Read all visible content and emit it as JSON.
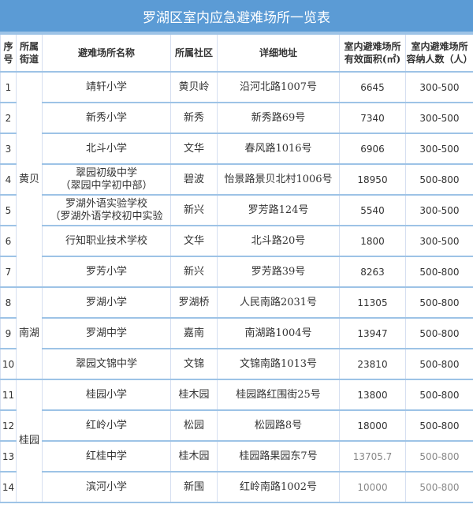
{
  "title": "罗湖区室内应急避难场所一览表",
  "headers": {
    "index": "序号",
    "street": "所属街道",
    "name": "避难场所名称",
    "community": "所属社区",
    "address": "详细地址",
    "area_l1": "室内避难场所",
    "area_l2": "有效面积(㎡)",
    "cap_l1": "室内避难场所",
    "cap_l2": "容纳人数（人）"
  },
  "streets": [
    "黄贝",
    "南湖",
    "桂园"
  ],
  "rows": [
    {
      "no": "1",
      "name": "靖轩小学",
      "name2": "",
      "community": "黄贝岭",
      "address": "沿河北路1007号",
      "area": "6645",
      "capacity": "300-500"
    },
    {
      "no": "2",
      "name": "新秀小学",
      "name2": "",
      "community": "新秀",
      "address": "新秀路69号",
      "area": "7340",
      "capacity": "300-500"
    },
    {
      "no": "3",
      "name": "北斗小学",
      "name2": "",
      "community": "文华",
      "address": "春风路1016号",
      "area": "6906",
      "capacity": "300-500"
    },
    {
      "no": "4",
      "name": "翠园初级中学",
      "name2": "（翠园中学初中部）",
      "community": "碧波",
      "address": "怡景路景贝北村1006号",
      "area": "18950",
      "capacity": "500-800"
    },
    {
      "no": "5",
      "name": "罗湖外语实验学校",
      "name2": "（罗湖外语学校初中实验",
      "community": "新兴",
      "address": "罗芳路124号",
      "area": "5540",
      "capacity": "300-500"
    },
    {
      "no": "6",
      "name": "行知职业技术学校",
      "name2": "",
      "community": "文华",
      "address": "北斗路20号",
      "area": "1800",
      "capacity": "300-500"
    },
    {
      "no": "7",
      "name": "罗芳小学",
      "name2": "",
      "community": "新兴",
      "address": "罗芳路39号",
      "area": "8263",
      "capacity": "500-800"
    },
    {
      "no": "8",
      "name": "罗湖小学",
      "name2": "",
      "community": "罗湖桥",
      "address": "人民南路2031号",
      "area": "11305",
      "capacity": "500-800"
    },
    {
      "no": "9",
      "name": "罗湖中学",
      "name2": "",
      "community": "嘉南",
      "address": "南湖路1004号",
      "area": "13947",
      "capacity": "500-800"
    },
    {
      "no": "10",
      "name": "翠园文锦中学",
      "name2": "",
      "community": "文锦",
      "address": "文锦南路1013号",
      "area": "23810",
      "capacity": "500-800"
    },
    {
      "no": "11",
      "name": "桂园小学",
      "name2": "",
      "community": "桂木园",
      "address": "桂园路红围街25号",
      "area": "13800",
      "capacity": "500-800"
    },
    {
      "no": "12",
      "name": "红岭小学",
      "name2": "",
      "community": "松园",
      "address": "松园路8号",
      "area": "18000",
      "capacity": "500-800"
    },
    {
      "no": "13",
      "name": "红桂中学",
      "name2": "",
      "community": "桂木园",
      "address": "桂园路果园东7号",
      "area": "13705.7",
      "capacity": "500-800"
    },
    {
      "no": "14",
      "name": "滨河小学",
      "name2": "",
      "community": "新围",
      "address": "红岭南路1002号",
      "area": "10000",
      "capacity": "500-800"
    }
  ]
}
